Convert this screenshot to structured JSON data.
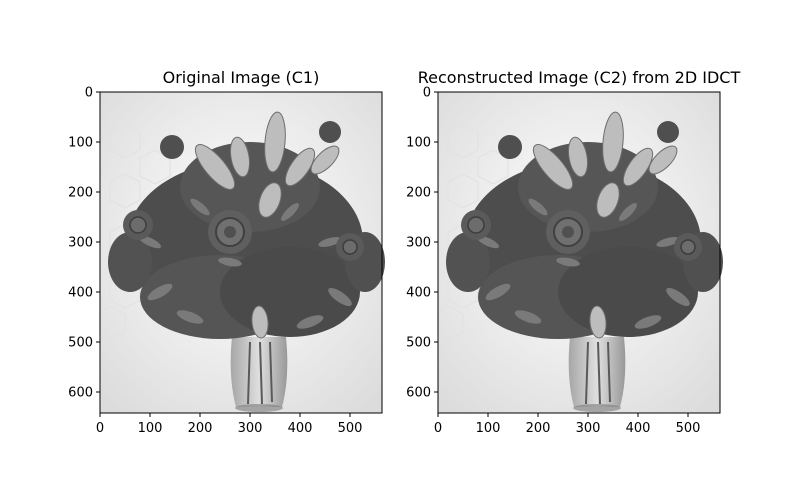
{
  "figure": {
    "panels": [
      {
        "title": "Original Image (C1)",
        "x_ticks": [
          "0",
          "100",
          "200",
          "300",
          "400",
          "500"
        ],
        "y_ticks": [
          "0",
          "100",
          "200",
          "300",
          "400",
          "500",
          "600"
        ],
        "image_content": "grayscale-flower-bouquet-in-glass-vase"
      },
      {
        "title": "Reconstructed Image (C2) from 2D IDCT",
        "x_ticks": [
          "0",
          "100",
          "200",
          "300",
          "400",
          "500"
        ],
        "y_ticks": [
          "0",
          "100",
          "200",
          "300",
          "400",
          "500",
          "600"
        ],
        "image_content": "grayscale-flower-bouquet-in-glass-vase"
      }
    ],
    "colors": {
      "background": "#ffffff",
      "axis": "#000000",
      "image_bg": "#f2f2f2",
      "flower_dark": "#3a3a3a",
      "flower_mid": "#6a6a6a",
      "flower_light": "#b5b5b5"
    }
  }
}
